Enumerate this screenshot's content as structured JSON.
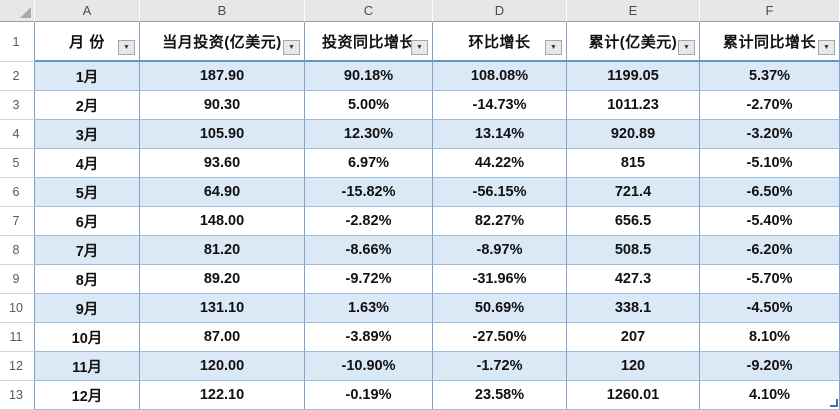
{
  "app": {
    "type": "spreadsheet"
  },
  "colors": {
    "band_blue": "#dbe8f6",
    "row_white": "#ffffff",
    "table_border_blue": "#7fa3cb",
    "header_underline_blue": "#6593c4",
    "row_separator_blue": "#9fbedc",
    "gutter_gray": "#e7e7e7",
    "gutter_text": "#4d4d4d",
    "cell_text": "#111111",
    "resize_handle_blue": "#3f6fa8"
  },
  "sheet": {
    "column_letters": [
      "A",
      "B",
      "C",
      "D",
      "E",
      "F"
    ],
    "row_numbers": [
      "1",
      "2",
      "3",
      "4",
      "5",
      "6",
      "7",
      "8",
      "9",
      "10",
      "11",
      "12",
      "13"
    ],
    "table": {
      "filter_icon": "▼",
      "headers": [
        "月  份",
        "当月投资(亿美元)",
        "投资同比增长",
        "环比增长",
        "累计(亿美元)",
        "累计同比增长"
      ],
      "rows": [
        [
          "1月",
          "187.90",
          "90.18%",
          "108.08%",
          "1199.05",
          "5.37%"
        ],
        [
          "2月",
          "90.30",
          "5.00%",
          "-14.73%",
          "1011.23",
          "-2.70%"
        ],
        [
          "3月",
          "105.90",
          "12.30%",
          "13.14%",
          "920.89",
          "-3.20%"
        ],
        [
          "4月",
          "93.60",
          "6.97%",
          "44.22%",
          "815",
          "-5.10%"
        ],
        [
          "5月",
          "64.90",
          "-15.82%",
          "-56.15%",
          "721.4",
          "-6.50%"
        ],
        [
          "6月",
          "148.00",
          "-2.82%",
          "82.27%",
          "656.5",
          "-5.40%"
        ],
        [
          "7月",
          "81.20",
          "-8.66%",
          "-8.97%",
          "508.5",
          "-6.20%"
        ],
        [
          "8月",
          "89.20",
          "-9.72%",
          "-31.96%",
          "427.3",
          "-5.70%"
        ],
        [
          "9月",
          "131.10",
          "1.63%",
          "50.69%",
          "338.1",
          "-4.50%"
        ],
        [
          "10月",
          "87.00",
          "-3.89%",
          "-27.50%",
          "207",
          "8.10%"
        ],
        [
          "11月",
          "120.00",
          "-10.90%",
          "-1.72%",
          "120",
          "-9.20%"
        ],
        [
          "12月",
          "122.10",
          "-0.19%",
          "23.58%",
          "1260.01",
          "4.10%"
        ]
      ]
    }
  }
}
